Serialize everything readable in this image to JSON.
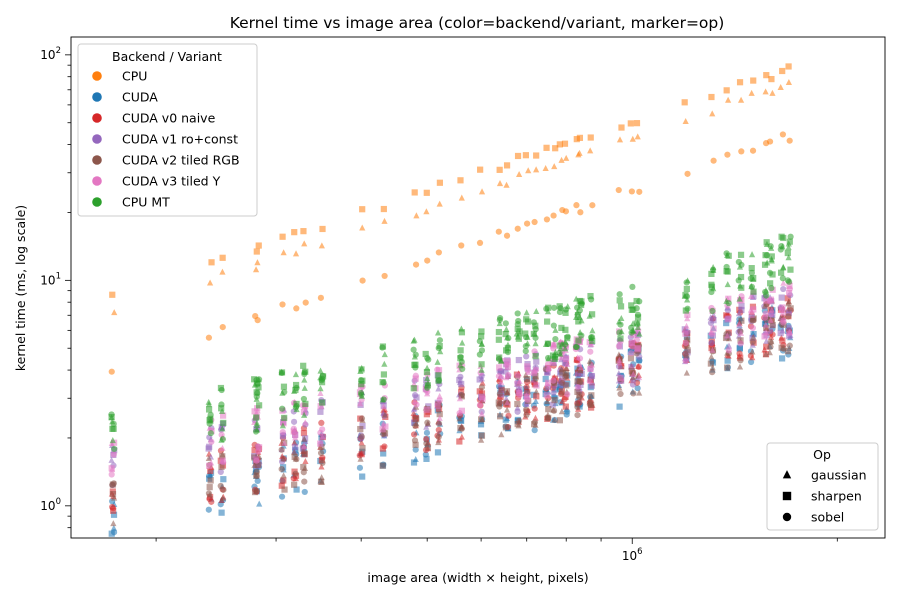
{
  "chart_data": {
    "type": "scatter",
    "title": "Kernel time vs image area (color=backend/variant, marker=op)",
    "xlabel": "image area (width × height, pixels)",
    "ylabel": "kernel time (ms, log scale)",
    "x_scale": "log",
    "y_scale": "log",
    "xlim": [
      150000,
      2350000
    ],
    "ylim": [
      0.72,
      120
    ],
    "x_ticks": [
      {
        "value": 1000000,
        "label": "10^6"
      }
    ],
    "y_ticks": [
      {
        "value": 1,
        "label": "10^0"
      },
      {
        "value": 10,
        "label": "10^1"
      },
      {
        "value": 100,
        "label": "10^2"
      }
    ],
    "grid": false,
    "legends": [
      {
        "title": "Backend / Variant",
        "placement": "upper-left",
        "entries": [
          {
            "label": "CPU",
            "color": "#ff7f0e"
          },
          {
            "label": "CUDA",
            "color": "#1f77b4"
          },
          {
            "label": "CUDA v0 naive",
            "color": "#d62728"
          },
          {
            "label": "CUDA v1 ro+const",
            "color": "#9467bd"
          },
          {
            "label": "CUDA v2 tiled RGB",
            "color": "#8c564b"
          },
          {
            "label": "CUDA v3 tiled Y",
            "color": "#e377c2"
          },
          {
            "label": "CPU MT",
            "color": "#2ca02c"
          }
        ]
      },
      {
        "title": "Op",
        "placement": "lower-right",
        "entries": [
          {
            "label": "gaussian",
            "marker": "triangle"
          },
          {
            "label": "sharpen",
            "marker": "square"
          },
          {
            "label": "sobel",
            "marker": "circle"
          }
        ]
      }
    ],
    "sample_areas": [
      172800,
      240000,
      250000,
      280000,
      282000,
      307200,
      320000,
      330000,
      350000,
      400000,
      432000,
      480000,
      500000,
      520000,
      560000,
      600000,
      640000,
      655000,
      680000,
      700000,
      720000,
      750000,
      768000,
      786000,
      800000,
      830000,
      840000,
      870000,
      960000,
      1000000,
      1020000,
      1200000,
      1310000,
      1380000,
      1440000,
      1500000,
      1570000,
      1600000,
      1660000,
      1700000
    ],
    "series": [
      {
        "backend": "CPU",
        "op": "sharpen",
        "color": "#ff7f0e",
        "marker": "square",
        "x": [
          172800,
          500000,
          1000000,
          1600000
        ],
        "y": [
          8.5,
          25,
          50,
          82
        ]
      },
      {
        "backend": "CPU",
        "op": "gaussian",
        "color": "#ff7f0e",
        "marker": "triangle",
        "x": [
          172800,
          500000,
          1000000,
          1600000
        ],
        "y": [
          7.2,
          21,
          43,
          70
        ]
      },
      {
        "backend": "CPU",
        "op": "sobel",
        "color": "#ff7f0e",
        "marker": "circle",
        "x": [
          172800,
          500000,
          1000000,
          1600000
        ],
        "y": [
          4.1,
          12.5,
          25,
          41
        ]
      },
      {
        "backend": "CUDA",
        "op": "all",
        "color": "#1f77b4",
        "marker": "mixed",
        "x": [
          172800,
          500000,
          1000000,
          1600000
        ],
        "y": [
          0.9,
          2.2,
          3.9,
          6.0
        ]
      },
      {
        "backend": "CUDA v0 naive",
        "op": "all",
        "color": "#d62728",
        "marker": "mixed",
        "x": [
          172800,
          500000,
          1000000,
          1600000
        ],
        "y": [
          1.1,
          2.4,
          4.2,
          6.5
        ]
      },
      {
        "backend": "CUDA v1 ro+const",
        "op": "all",
        "color": "#9467bd",
        "marker": "mixed",
        "x": [
          172800,
          500000,
          1000000,
          1600000
        ],
        "y": [
          1.5,
          2.9,
          4.6,
          7.2
        ]
      },
      {
        "backend": "CUDA v2 tiled RGB",
        "op": "all",
        "color": "#8c564b",
        "marker": "mixed",
        "x": [
          172800,
          500000,
          1000000,
          1600000
        ],
        "y": [
          1.0,
          2.3,
          4.0,
          6.3
        ]
      },
      {
        "backend": "CUDA v3 tiled Y",
        "op": "all",
        "color": "#e377c2",
        "marker": "mixed",
        "x": [
          172800,
          500000,
          1000000,
          1600000
        ],
        "y": [
          1.6,
          3.1,
          4.9,
          7.5
        ]
      },
      {
        "backend": "CPU MT",
        "op": "all",
        "color": "#2ca02c",
        "marker": "mixed",
        "x": [
          172800,
          500000,
          1000000,
          1600000
        ],
        "y": [
          2.0,
          4.5,
          7.5,
          12
        ]
      }
    ]
  }
}
